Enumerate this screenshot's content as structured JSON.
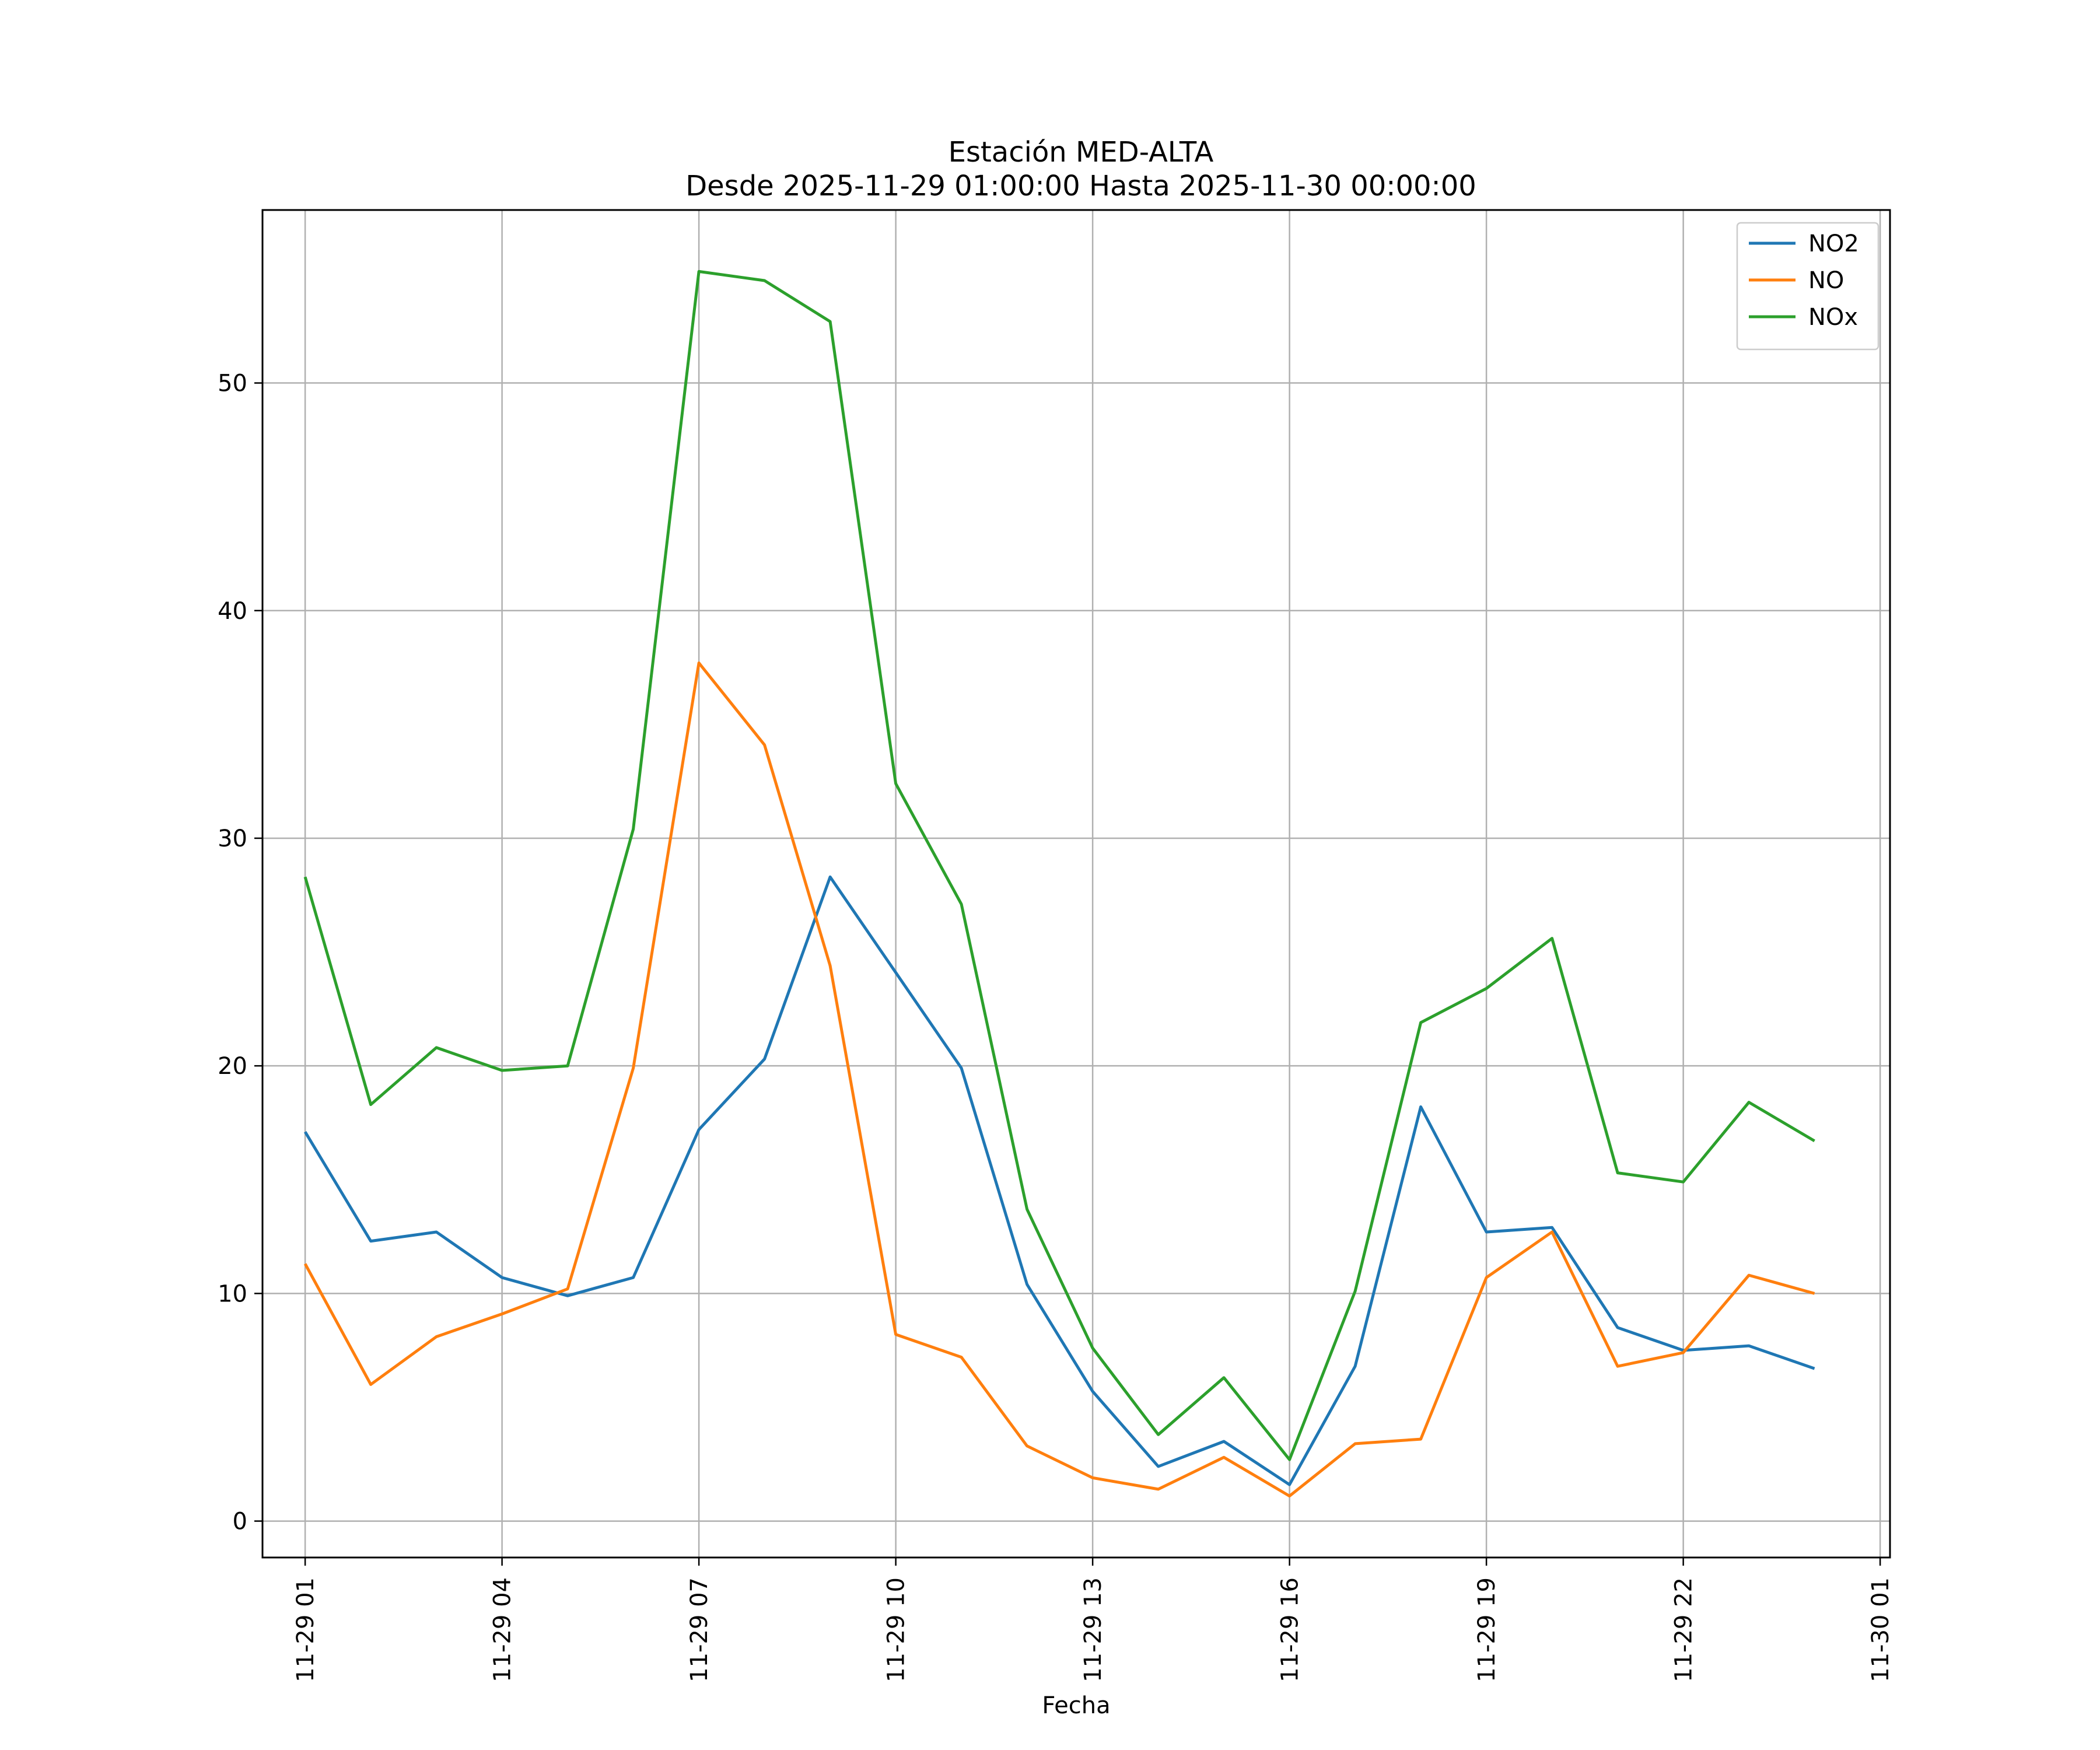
{
  "chart_data": {
    "type": "line",
    "title": "Estación MED-ALTA",
    "subtitle": "Desde 2025-11-29 01:00:00 Hasta 2025-11-30 00:00:00",
    "xlabel": "Fecha",
    "ylabel": "",
    "x": [
      "11-29 01",
      "11-29 02",
      "11-29 03",
      "11-29 04",
      "11-29 05",
      "11-29 06",
      "11-29 07",
      "11-29 08",
      "11-29 09",
      "11-29 10",
      "11-29 11",
      "11-29 12",
      "11-29 13",
      "11-29 14",
      "11-29 15",
      "11-29 16",
      "11-29 17",
      "11-29 18",
      "11-29 19",
      "11-29 20",
      "11-29 21",
      "11-29 22",
      "11-29 23",
      "11-30 00"
    ],
    "x_ticks": [
      "11-29 01",
      "11-29 04",
      "11-29 07",
      "11-29 10",
      "11-29 13",
      "11-29 16",
      "11-29 19",
      "11-29 22",
      "11-30 01"
    ],
    "y_ticks": [
      0,
      10,
      20,
      30,
      40,
      50
    ],
    "ylim": [
      -1.6,
      57.6
    ],
    "xlim_hours": [
      -0.65,
      24.15
    ],
    "grid": true,
    "legend_position": "top-right",
    "series": [
      {
        "name": "NO2",
        "color": "#1f77b4",
        "values": [
          17.1,
          12.3,
          12.7,
          10.7,
          9.9,
          10.7,
          17.2,
          20.3,
          28.3,
          24.1,
          19.9,
          10.4,
          5.7,
          2.4,
          3.5,
          1.6,
          6.8,
          18.2,
          12.7,
          12.9,
          8.5,
          7.5,
          7.7,
          6.7
        ]
      },
      {
        "name": "NO",
        "color": "#ff7f0e",
        "values": [
          11.3,
          6.0,
          8.1,
          9.1,
          10.2,
          19.9,
          37.7,
          34.1,
          24.4,
          8.2,
          7.2,
          3.3,
          1.9,
          1.4,
          2.8,
          1.1,
          3.4,
          3.6,
          10.7,
          12.7,
          6.8,
          7.4,
          10.8,
          10.0
        ]
      },
      {
        "name": "NOx",
        "color": "#2ca02c",
        "values": [
          28.3,
          18.3,
          20.8,
          19.8,
          20.0,
          30.4,
          54.9,
          54.5,
          52.7,
          32.4,
          27.1,
          13.7,
          7.6,
          3.8,
          6.3,
          2.7,
          10.1,
          21.9,
          23.4,
          25.6,
          15.3,
          14.9,
          18.4,
          16.7
        ]
      }
    ]
  }
}
